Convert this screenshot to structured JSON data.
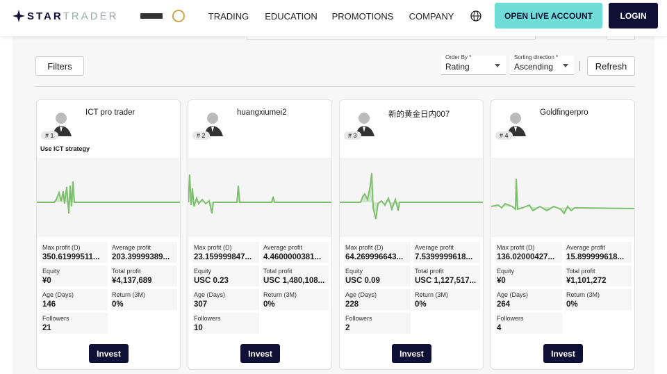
{
  "header": {
    "logo": {
      "bold": "STAR",
      "light": "TRADER"
    },
    "nav": [
      "TRADING",
      "EDUCATION",
      "PROMOTIONS",
      "COMPANY"
    ],
    "cta": "OPEN LIVE ACCOUNT",
    "login": "LOGIN"
  },
  "toolbar": {
    "filters": "Filters",
    "order_by": {
      "label": "Order By *",
      "value": "Rating"
    },
    "sorting": {
      "label": "Sorting direction *",
      "value": "Ascending"
    },
    "refresh": "Refresh"
  },
  "cards": [
    {
      "rank": "# 1",
      "name": "ICT pro trader",
      "description": "Use ICT strategy",
      "button": "Invest",
      "stats": [
        {
          "label": "Max profit (D)",
          "value": "350.61999511..."
        },
        {
          "label": "Average profit",
          "value": "203.39999389..."
        },
        {
          "label": "Equity",
          "value": "¥0"
        },
        {
          "label": "Total profit",
          "value": "¥4,137,689"
        },
        {
          "label": "Age (Days)",
          "value": "146"
        },
        {
          "label": "Return (3M)",
          "value": "0%"
        },
        {
          "label": "Followers",
          "value": "21"
        }
      ]
    },
    {
      "rank": "# 2",
      "name": "huangxiumei2",
      "button": "Invest",
      "stats": [
        {
          "label": "Max profit (D)",
          "value": "23.159999847..."
        },
        {
          "label": "Average profit",
          "value": "4.4600000381..."
        },
        {
          "label": "Equity",
          "value": "USC 0.23"
        },
        {
          "label": "Total profit",
          "value": "USC 1,480,108..."
        },
        {
          "label": "Age (Days)",
          "value": "307"
        },
        {
          "label": "Return (3M)",
          "value": "0%"
        },
        {
          "label": "Followers",
          "value": "10"
        }
      ]
    },
    {
      "rank": "# 3",
      "name": "新的黄金日内007",
      "button": "Invest",
      "stats": [
        {
          "label": "Max profit (D)",
          "value": "64.269996643..."
        },
        {
          "label": "Average profit",
          "value": "7.5399999618..."
        },
        {
          "label": "Equity",
          "value": "USC 0.09"
        },
        {
          "label": "Total profit",
          "value": "USC 1,127,517..."
        },
        {
          "label": "Age (Days)",
          "value": "228"
        },
        {
          "label": "Return (3M)",
          "value": "0%"
        },
        {
          "label": "Followers",
          "value": "2"
        }
      ]
    },
    {
      "rank": "# 4",
      "name": "Goldfingerpro",
      "button": "Invest",
      "stats": [
        {
          "label": "Max profit (D)",
          "value": "136.02000427..."
        },
        {
          "label": "Average profit",
          "value": "15.899999618..."
        },
        {
          "label": "Equity",
          "value": "¥0"
        },
        {
          "label": "Total profit",
          "value": "¥1,101,272"
        },
        {
          "label": "Age (Days)",
          "value": "264"
        },
        {
          "label": "Return (3M)",
          "value": "0%"
        },
        {
          "label": "Followers",
          "value": "4"
        }
      ]
    }
  ]
}
